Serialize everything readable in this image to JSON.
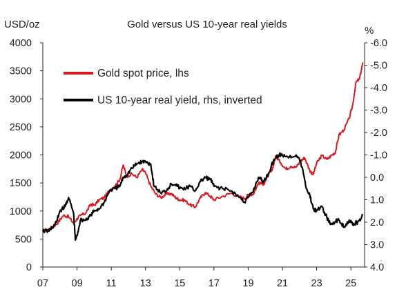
{
  "chart_data": {
    "type": "line",
    "title": "Gold versus US 10-year real yields",
    "left_unit": "USD/oz",
    "right_unit": "%",
    "x_ticks": [
      "07",
      "09",
      "11",
      "13",
      "15",
      "17",
      "19",
      "21",
      "23",
      "25"
    ],
    "x_tick_years": [
      2007,
      2009,
      2011,
      2013,
      2015,
      2017,
      2019,
      2021,
      2023,
      2025
    ],
    "xlim": [
      2007.0,
      2025.8
    ],
    "left_ylim": [
      0,
      4000
    ],
    "left_ticks": [
      "0",
      "500",
      "1000",
      "1500",
      "2000",
      "2500",
      "3000",
      "3500",
      "4000"
    ],
    "right_ylim": [
      4.0,
      -6.0
    ],
    "right_inverted": true,
    "right_ticks": [
      "4.0",
      "3.0",
      "2.0",
      "1.0",
      "0.0",
      "-1.0",
      "-2.0",
      "-3.0",
      "-4.0",
      "-5.0",
      "-6.0"
    ],
    "legend_position": "top-left",
    "grid": false,
    "series": [
      {
        "name": "Gold spot price, lhs",
        "axis": "left",
        "color": "#d71920",
        "x": [
          2007.0,
          2007.3,
          2007.6,
          2007.9,
          2008.2,
          2008.5,
          2008.8,
          2009.0,
          2009.2,
          2009.5,
          2009.8,
          2010.0,
          2010.3,
          2010.6,
          2010.9,
          2011.2,
          2011.5,
          2011.7,
          2011.9,
          2012.2,
          2012.5,
          2012.8,
          2013.0,
          2013.3,
          2013.6,
          2013.9,
          2014.2,
          2014.5,
          2014.8,
          2015.0,
          2015.3,
          2015.6,
          2015.9,
          2016.2,
          2016.5,
          2016.8,
          2017.0,
          2017.5,
          2018.0,
          2018.5,
          2018.8,
          2019.0,
          2019.3,
          2019.6,
          2019.9,
          2020.2,
          2020.4,
          2020.6,
          2020.9,
          2021.2,
          2021.5,
          2021.8,
          2022.1,
          2022.3,
          2022.6,
          2022.8,
          2023.0,
          2023.3,
          2023.6,
          2023.9,
          2024.1,
          2024.3,
          2024.6,
          2024.9,
          2025.1,
          2025.3,
          2025.5,
          2025.7
        ],
        "y": [
          640,
          670,
          720,
          800,
          920,
          900,
          780,
          860,
          920,
          960,
          1120,
          1100,
          1200,
          1240,
          1370,
          1440,
          1560,
          1820,
          1620,
          1660,
          1600,
          1740,
          1680,
          1450,
          1300,
          1240,
          1300,
          1310,
          1230,
          1200,
          1190,
          1110,
          1070,
          1230,
          1330,
          1260,
          1200,
          1260,
          1320,
          1250,
          1220,
          1290,
          1300,
          1500,
          1480,
          1650,
          1720,
          1980,
          1860,
          1750,
          1800,
          1780,
          1900,
          1950,
          1720,
          1650,
          1850,
          1990,
          1920,
          2000,
          2050,
          2350,
          2450,
          2650,
          2880,
          3300,
          3350,
          3650
        ]
      },
      {
        "name": "US 10-year real yield, rhs, inverted",
        "axis": "right",
        "color": "#000000",
        "x": [
          2007.0,
          2007.3,
          2007.5,
          2007.8,
          2008.0,
          2008.3,
          2008.5,
          2008.8,
          2008.9,
          2009.0,
          2009.2,
          2009.5,
          2009.8,
          2010.0,
          2010.3,
          2010.6,
          2010.9,
          2011.2,
          2011.5,
          2011.7,
          2011.9,
          2012.2,
          2012.5,
          2012.8,
          2013.0,
          2013.3,
          2013.5,
          2013.9,
          2014.2,
          2014.5,
          2014.8,
          2015.0,
          2015.3,
          2015.6,
          2015.9,
          2016.2,
          2016.5,
          2016.8,
          2017.0,
          2017.5,
          2018.0,
          2018.5,
          2018.8,
          2019.0,
          2019.3,
          2019.6,
          2019.9,
          2020.2,
          2020.5,
          2020.8,
          2021.0,
          2021.4,
          2021.8,
          2022.0,
          2022.2,
          2022.4,
          2022.6,
          2022.8,
          2023.0,
          2023.3,
          2023.6,
          2023.8,
          2024.0,
          2024.3,
          2024.6,
          2024.9,
          2025.1,
          2025.4,
          2025.7
        ],
        "y": [
          2.4,
          2.4,
          2.3,
          2.0,
          1.5,
          1.3,
          0.9,
          1.6,
          2.8,
          2.6,
          1.9,
          1.9,
          1.7,
          1.5,
          1.4,
          1.1,
          0.6,
          0.5,
          0.4,
          0.0,
          -0.1,
          -0.4,
          -0.6,
          -0.7,
          -0.7,
          -0.6,
          0.4,
          0.7,
          0.6,
          0.3,
          0.3,
          0.5,
          0.5,
          0.4,
          0.6,
          0.2,
          0.0,
          0.1,
          0.4,
          0.5,
          0.6,
          0.9,
          1.1,
          0.9,
          0.6,
          0.0,
          0.2,
          -0.2,
          -0.8,
          -1.0,
          -1.0,
          -0.9,
          -1.0,
          -0.8,
          -0.3,
          0.5,
          0.8,
          1.4,
          1.5,
          1.3,
          1.8,
          2.1,
          2.0,
          1.9,
          2.2,
          1.9,
          2.1,
          2.0,
          1.7
        ]
      }
    ]
  }
}
